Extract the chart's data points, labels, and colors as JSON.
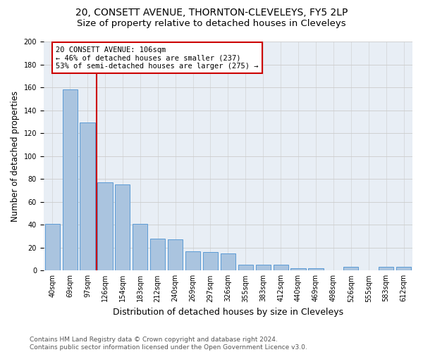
{
  "title": "20, CONSETT AVENUE, THORNTON-CLEVELEYS, FY5 2LP",
  "subtitle": "Size of property relative to detached houses in Cleveleys",
  "xlabel": "Distribution of detached houses by size in Cleveleys",
  "ylabel": "Number of detached properties",
  "categories": [
    "40sqm",
    "69sqm",
    "97sqm",
    "126sqm",
    "154sqm",
    "183sqm",
    "212sqm",
    "240sqm",
    "269sqm",
    "297sqm",
    "326sqm",
    "355sqm",
    "383sqm",
    "412sqm",
    "440sqm",
    "469sqm",
    "498sqm",
    "526sqm",
    "555sqm",
    "583sqm",
    "612sqm"
  ],
  "values": [
    41,
    158,
    129,
    77,
    75,
    41,
    28,
    27,
    17,
    16,
    15,
    5,
    5,
    5,
    2,
    2,
    0,
    3,
    0,
    3,
    3
  ],
  "bar_color": "#aac4df",
  "bar_edge_color": "#5b9bd5",
  "vline_x_index": 2,
  "vline_color": "#cc0000",
  "annotation_text": "20 CONSETT AVENUE: 106sqm\n← 46% of detached houses are smaller (237)\n53% of semi-detached houses are larger (275) →",
  "annotation_box_facecolor": "#ffffff",
  "annotation_box_edgecolor": "#cc0000",
  "ylim": [
    0,
    200
  ],
  "yticks": [
    0,
    20,
    40,
    60,
    80,
    100,
    120,
    140,
    160,
    180,
    200
  ],
  "grid_color": "#cccccc",
  "bg_color": "#e8eef5",
  "footer_line1": "Contains HM Land Registry data © Crown copyright and database right 2024.",
  "footer_line2": "Contains public sector information licensed under the Open Government Licence v3.0.",
  "title_fontsize": 10,
  "subtitle_fontsize": 9.5,
  "ylabel_fontsize": 8.5,
  "xlabel_fontsize": 9,
  "tick_fontsize": 7,
  "annotation_fontsize": 7.5,
  "footer_fontsize": 6.5
}
